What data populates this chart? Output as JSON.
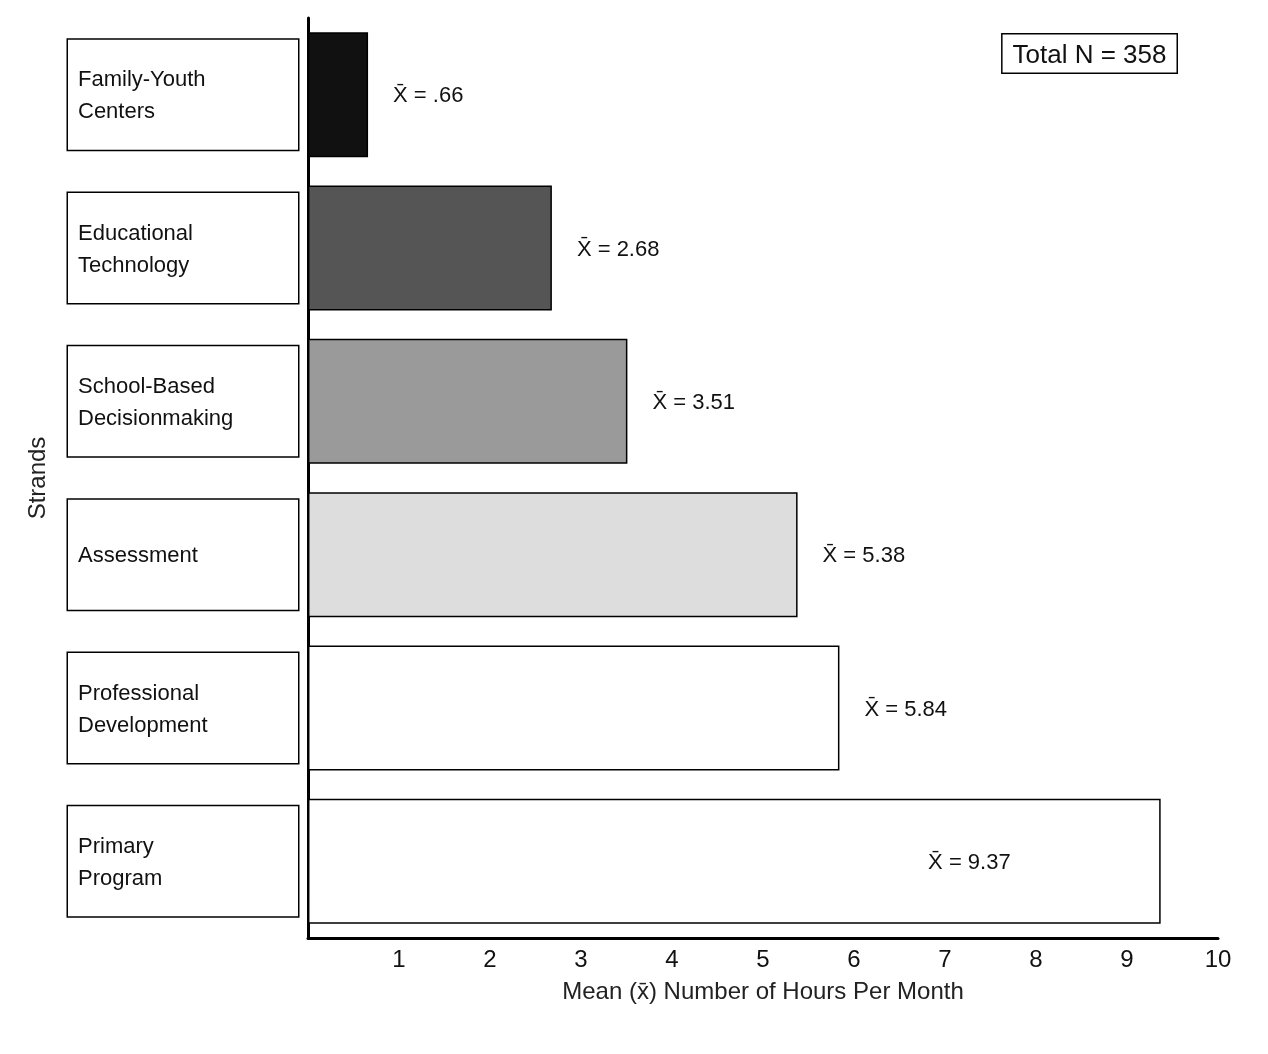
{
  "chart_data": {
    "type": "bar",
    "orientation": "horizontal",
    "xlabel": "Mean (x̄) Number of Hours Per Month",
    "ylabel": "Strands",
    "categories": [
      "Family-Youth\nCenters",
      "Educational\nTechnology",
      "School-Based\nDecisionmaking",
      "Assessment",
      "Professional\nDevelopment",
      "Primary\nProgram"
    ],
    "values": [
      0.66,
      2.68,
      3.51,
      5.38,
      5.84,
      9.37
    ],
    "colors": [
      "#111111",
      "#555555",
      "#9a9a9a",
      "#dddddd",
      "#ffffff",
      "#ffffff"
    ],
    "value_labels": [
      "X̄ = .66",
      "X̄ = 2.68",
      "X̄ = 3.51",
      "X̄ = 5.38",
      "X̄ = 5.84",
      "X̄ = 9.37"
    ],
    "xlim": [
      0,
      10
    ],
    "xticks": [
      1,
      2,
      3,
      4,
      5,
      6,
      7,
      8,
      9,
      10
    ],
    "grid": false,
    "annotations": [
      "Total N = 358"
    ]
  }
}
